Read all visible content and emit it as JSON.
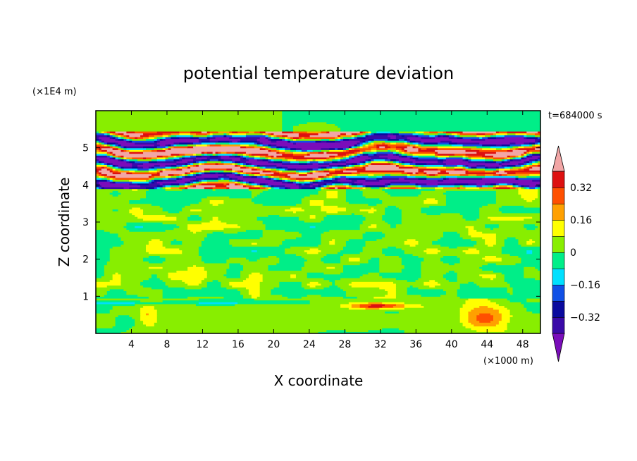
{
  "chart_data": {
    "type": "heatmap",
    "title": "potential temperature deviation",
    "xlabel": "X coordinate",
    "ylabel": "Z coordinate",
    "x_unit": "(×1000 m)",
    "y_unit": "(×1E4 m)",
    "time_label": "t=684000 s",
    "xlim": [
      0,
      50
    ],
    "ylim": [
      0,
      6
    ],
    "x_ticks": [
      4,
      8,
      12,
      16,
      20,
      24,
      28,
      32,
      36,
      40,
      44,
      48
    ],
    "y_ticks": [
      1,
      2,
      3,
      4,
      5
    ],
    "colorbar": {
      "levels": [
        -0.48,
        -0.4,
        -0.32,
        -0.24,
        -0.16,
        -0.08,
        0,
        0.08,
        0.16,
        0.24,
        0.32,
        0.4,
        0.48
      ],
      "colors": [
        "#7a0dba",
        "#3a0aa8",
        "#0a0a9e",
        "#1050e6",
        "#00e0ff",
        "#00ee88",
        "#88ee00",
        "#ffff00",
        "#ffa000",
        "#ff5000",
        "#dd1010",
        "#f2a6a6"
      ],
      "labels": [
        {
          "value": -0.32,
          "text": "−0.32"
        },
        {
          "value": -0.16,
          "text": "−0.16"
        },
        {
          "value": 0,
          "text": "0"
        },
        {
          "value": 0.16,
          "text": "0.16"
        },
        {
          "value": 0.32,
          "text": "0.32"
        }
      ],
      "extend": "both"
    },
    "grid": false,
    "regions": [
      {
        "name": "upper-layer",
        "x": [
          0,
          50
        ],
        "z": [
          3.9,
          5.4
        ],
        "description": "banded strong positive and negative anomalies"
      },
      {
        "name": "mid-layer",
        "x": [
          0,
          50
        ],
        "z": [
          0.9,
          3.9
        ],
        "description": "near-zero mottled field"
      },
      {
        "name": "surface-warm-1",
        "x": [
          4.5,
          7
        ],
        "z": [
          0.1,
          0.8
        ],
        "value": 0.12
      },
      {
        "name": "surface-warm-2",
        "x": [
          27,
          37
        ],
        "z": [
          0.5,
          0.9
        ],
        "value": 0.3
      },
      {
        "name": "surface-warm-3",
        "x": [
          38,
          50
        ],
        "z": [
          0,
          0.9
        ],
        "value": 0.2
      },
      {
        "name": "top-layer",
        "x": [
          0,
          50
        ],
        "z": [
          5.4,
          6.0
        ],
        "value": 0.0
      }
    ]
  }
}
